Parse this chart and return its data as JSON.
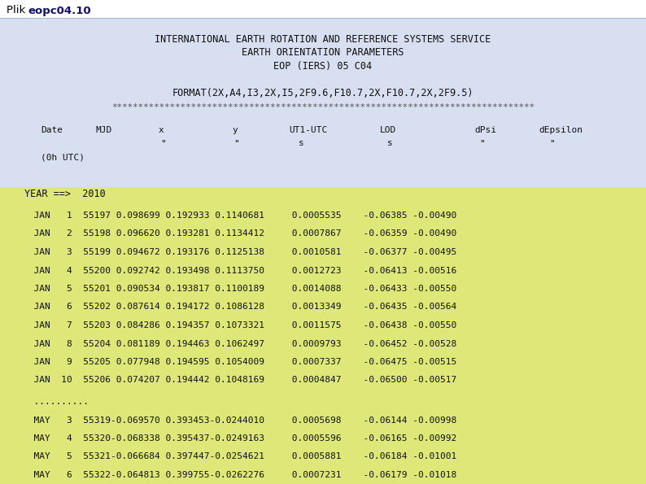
{
  "title_plain": "Plik ",
  "title_bold": "eopc04.10",
  "header_lines": [
    "INTERNATIONAL EARTH ROTATION AND REFERENCE SYSTEMS SERVICE",
    "EARTH ORIENTATION PARAMETERS",
    "EOP (IERS) 05 C04"
  ],
  "format_line": "FORMAT(2X,A4,I3,2X,I5,2F9.6,F10.7,2X,F10.7,2X,2F9.5)",
  "stars": "********************************************************************************",
  "bg_top": "#d8dff0",
  "bg_bottom": "#e8f070",
  "bg_title": "#ffffff",
  "color_text": "#111111",
  "color_title_bold": "#222288",
  "jan_rows": [
    "  JAN   1  55197 0.098699 0.192933 0.1140681     0.0005535    -0.06385 -0.00490",
    "  JAN   2  55198 0.096620 0.193281 0.1134412     0.0007867    -0.06359 -0.00490",
    "  JAN   3  55199 0.094672 0.193176 0.1125138     0.0010581    -0.06377 -0.00495",
    "  JAN   4  55200 0.092742 0.193498 0.1113750     0.0012723    -0.06413 -0.00516",
    "  JAN   5  55201 0.090534 0.193817 0.1100189     0.0014088    -0.06433 -0.00550",
    "  JAN   6  55202 0.087614 0.194172 0.1086128     0.0013349    -0.06435 -0.00564",
    "  JAN   7  55203 0.084286 0.194357 0.1073321     0.0011575    -0.06438 -0.00550",
    "  JAN   8  55204 0.081189 0.194463 0.1062497     0.0009793    -0.06452 -0.00528",
    "  JAN   9  55205 0.077948 0.194595 0.1054009     0.0007337    -0.06475 -0.00515",
    "  JAN  10  55206 0.074207 0.194442 0.1048169     0.0004847    -0.06500 -0.00517"
  ],
  "may_rows": [
    "  MAY   3  55319-0.069570 0.393453-0.0244010     0.0005698    -0.06144 -0.00998",
    "  MAY   4  55320-0.068338 0.395437-0.0249163     0.0005596    -0.06165 -0.00992",
    "  MAY   5  55321-0.066684 0.397447-0.0254621     0.0005881    -0.06184 -0.01001",
    "  MAY   6  55322-0.064813 0.399755-0.0262276     0.0007231    -0.06179 -0.01018"
  ]
}
